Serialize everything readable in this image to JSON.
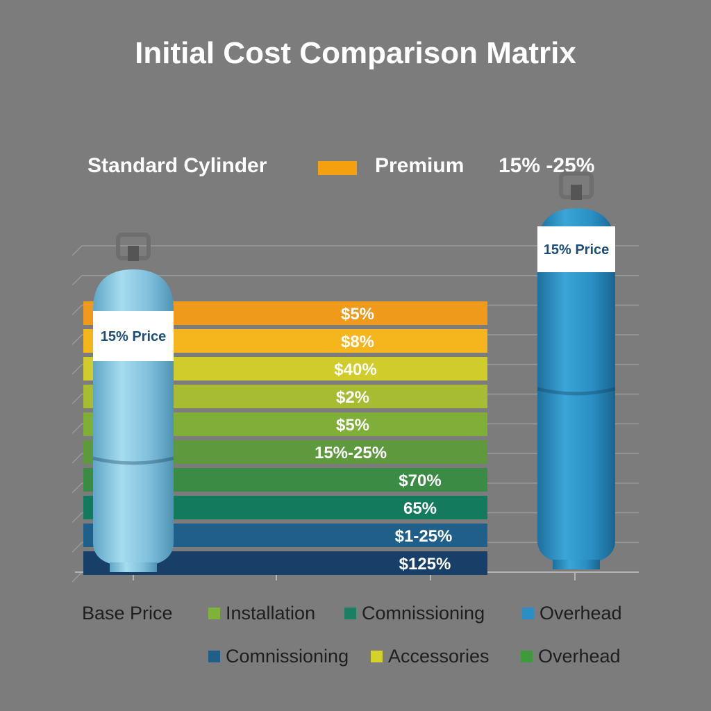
{
  "chart_data": {
    "type": "bar",
    "title": "Initial Cost Comparison Matrix",
    "header": {
      "standard_label": "Standard Cylinder",
      "premium_label": "Premium",
      "premium_color": "#f5a00f",
      "premium_range": "15% -25%"
    },
    "cylinders": {
      "standard": {
        "label": "15% Price",
        "color": "#84c3dd"
      },
      "premium": {
        "label": "15% Price",
        "color": "#2a8fc4"
      }
    },
    "bars": [
      {
        "label": "$5%",
        "color": "#ef9a1a"
      },
      {
        "label": "$8%",
        "color": "#f4b51d"
      },
      {
        "label": "$40%",
        "color": "#cfcc2c"
      },
      {
        "label": "$2%",
        "color": "#a8bc33"
      },
      {
        "label": "$5%",
        "color": "#7fae39"
      },
      {
        "label": "15%-25%",
        "color": "#5e9a3d"
      },
      {
        "label": "$70%",
        "color": "#3b8b45"
      },
      {
        "label": "65%",
        "color": "#137a5e"
      },
      {
        "label": "$1-25%",
        "color": "#1f5f8a"
      },
      {
        "label": "$125%",
        "color": "#173f68"
      }
    ],
    "legend_rows": [
      [
        {
          "label": "Base Price",
          "color": null
        },
        {
          "label": "Installation",
          "color": "#7fb23b"
        },
        {
          "label": "Comnissioning",
          "color": "#1b7f64"
        },
        {
          "label": "Overhead",
          "color": "#2a8fc4"
        }
      ],
      [
        {
          "label": "Comnissioning",
          "color": "#1f5f8a"
        },
        {
          "label": "Accessories",
          "color": "#d4d12c"
        },
        {
          "label": "Overhead",
          "color": "#3f9a3c"
        }
      ]
    ]
  }
}
